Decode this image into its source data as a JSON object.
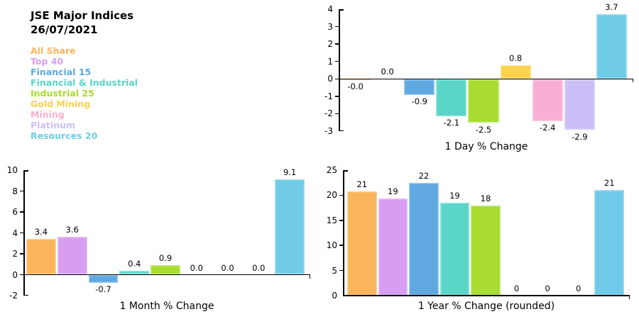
{
  "header": {
    "title": "JSE Major Indices",
    "date": "26/07/2021"
  },
  "indices": [
    {
      "name": "All Share",
      "color": "#FAB55C"
    },
    {
      "name": "Top 40",
      "color": "#D69DF0"
    },
    {
      "name": "Financial 15",
      "color": "#5FA8E0"
    },
    {
      "name": "Financial & Industrial",
      "color": "#5AD5C8"
    },
    {
      "name": "Industrial 25",
      "color": "#A8DC30"
    },
    {
      "name": "Gold Mining",
      "color": "#FBD24B"
    },
    {
      "name": "Mining",
      "color": "#F9AFD3"
    },
    {
      "name": "Platinum",
      "color": "#CBBEF6"
    },
    {
      "name": "Resources 20",
      "color": "#6FCBE8"
    }
  ],
  "chart_data": [
    {
      "type": "bar",
      "title": "1 Day % Change",
      "categories": [
        "All Share",
        "Top 40",
        "Financial 15",
        "Financial & Industrial",
        "Industrial 25",
        "Gold Mining",
        "Mining",
        "Platinum",
        "Resources 20"
      ],
      "values": [
        -0.0,
        0.0,
        -0.9,
        -2.1,
        -2.5,
        0.8,
        -2.4,
        -2.9,
        3.7
      ],
      "value_labels": [
        "-0.0",
        "0.0",
        "-0.9",
        "-2.1",
        "-2.5",
        "0.8",
        "-2.4",
        "-2.9",
        "3.7"
      ],
      "xlabel": "1 Day % Change",
      "ylabel": "",
      "ylim": [
        -3,
        4
      ],
      "ystep": 1,
      "grid": false,
      "legend_position": "figure-left"
    },
    {
      "type": "bar",
      "title": "1 Month % Change",
      "categories": [
        "All Share",
        "Top 40",
        "Financial 15",
        "Financial & Industrial",
        "Industrial 25",
        "Gold Mining",
        "Mining",
        "Platinum",
        "Resources 20"
      ],
      "values": [
        3.4,
        3.6,
        -0.7,
        0.4,
        0.9,
        0.0,
        0.0,
        0.0,
        9.1
      ],
      "value_labels": [
        "3.4",
        "3.6",
        "-0.7",
        "0.4",
        "0.9",
        "0.0",
        "0.0",
        "0.0",
        "9.1"
      ],
      "xlabel": "1 Month % Change",
      "ylabel": "",
      "ylim": [
        -2,
        10
      ],
      "ystep": 2,
      "grid": false,
      "legend_position": "figure-left"
    },
    {
      "type": "bar",
      "title": "1 Year % Change (rounded)",
      "categories": [
        "All Share",
        "Top 40",
        "Financial 15",
        "Financial & Industrial",
        "Industrial 25",
        "Gold Mining",
        "Mining",
        "Platinum",
        "Resources 20"
      ],
      "values": [
        20.8,
        19.3,
        22.4,
        18.5,
        18.0,
        0,
        0,
        0,
        21.1
      ],
      "value_labels": [
        "21",
        "19",
        "22",
        "19",
        "18",
        "0",
        "0",
        "0",
        "21"
      ],
      "xlabel": "1 Year % Change (rounded)",
      "ylabel": "",
      "ylim": [
        0,
        25
      ],
      "ystep": 5,
      "grid": false,
      "legend_position": "figure-left"
    }
  ]
}
